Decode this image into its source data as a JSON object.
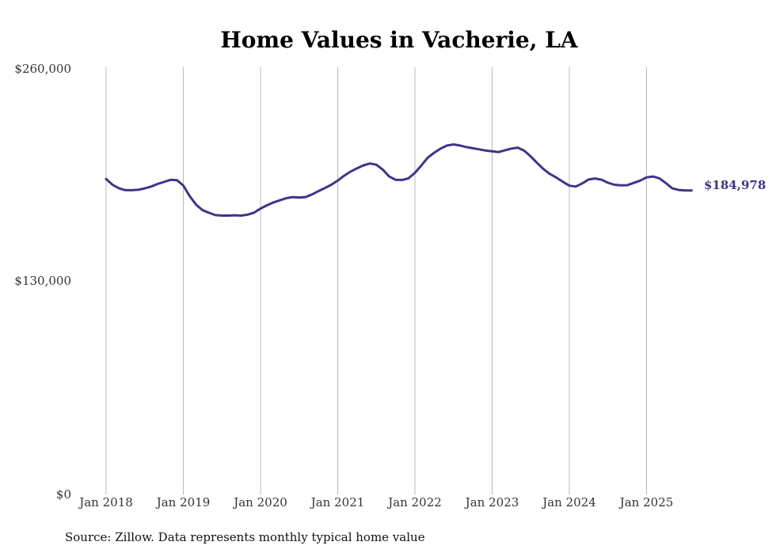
{
  "colors": {
    "series": "#3d3589",
    "gridline": "#b8b8b8",
    "text": "#333333"
  },
  "chart_data": {
    "type": "line",
    "title": "Home Values in Vacherie, LA",
    "xlabel": "",
    "ylabel": "",
    "grid": "vertical",
    "x_ticks": [
      "Jan 2018",
      "Jan 2019",
      "Jan 2020",
      "Jan 2021",
      "Jan 2022",
      "Jan 2023",
      "Jan 2024",
      "Jan 2025"
    ],
    "y_ticks": [
      "$0",
      "$130,000",
      "$260,000"
    ],
    "ylim": [
      0,
      260000
    ],
    "xlim": [
      "2018-01",
      "2025-08"
    ],
    "end_label": "$184,978",
    "series": [
      {
        "x": [
          "2018-01",
          "2018-02",
          "2018-03",
          "2018-04",
          "2018-05",
          "2018-06",
          "2018-07",
          "2018-08",
          "2018-09",
          "2018-10",
          "2018-11",
          "2018-12",
          "2019-01",
          "2019-02",
          "2019-03",
          "2019-04",
          "2019-05",
          "2019-06",
          "2019-07",
          "2019-08",
          "2019-09",
          "2019-10",
          "2019-11",
          "2019-12",
          "2020-01",
          "2020-02",
          "2020-03",
          "2020-04",
          "2020-05",
          "2020-06",
          "2020-07",
          "2020-08",
          "2020-09",
          "2020-10",
          "2020-11",
          "2020-12",
          "2021-01",
          "2021-02",
          "2021-03",
          "2021-04",
          "2021-05",
          "2021-06",
          "2021-07",
          "2021-08",
          "2021-09",
          "2021-10",
          "2021-11",
          "2021-12",
          "2022-01",
          "2022-02",
          "2022-03",
          "2022-04",
          "2022-05",
          "2022-06",
          "2022-07",
          "2022-08",
          "2022-09",
          "2022-10",
          "2022-11",
          "2022-12",
          "2023-01",
          "2023-02",
          "2023-03",
          "2023-04",
          "2023-05",
          "2023-06",
          "2023-07",
          "2023-08",
          "2023-09",
          "2023-10",
          "2023-11",
          "2023-12",
          "2024-01",
          "2024-02",
          "2024-03",
          "2024-04",
          "2024-05",
          "2024-06",
          "2024-07",
          "2024-08",
          "2024-09",
          "2024-10",
          "2024-11",
          "2024-12",
          "2025-01",
          "2025-02",
          "2025-03",
          "2025-04",
          "2025-05",
          "2025-06",
          "2025-07",
          "2025-08"
        ],
        "values": [
          192000,
          188500,
          186300,
          185200,
          185200,
          185400,
          186300,
          187400,
          189000,
          190200,
          191500,
          191300,
          188000,
          181500,
          176300,
          173000,
          171400,
          170000,
          169700,
          169700,
          169900,
          169700,
          170300,
          171500,
          174000,
          176000,
          177700,
          179000,
          180300,
          181000,
          180700,
          181000,
          182600,
          184600,
          186500,
          188500,
          191000,
          194000,
          196500,
          198500,
          200300,
          201400,
          200700,
          197700,
          193500,
          191500,
          191400,
          192400,
          195700,
          200200,
          205000,
          208000,
          210500,
          212400,
          213000,
          212400,
          211400,
          210700,
          210000,
          209300,
          208800,
          208400,
          209500,
          210500,
          211100,
          209200,
          205700,
          201700,
          198000,
          195000,
          192800,
          190300,
          187900,
          187400,
          189300,
          191700,
          192300,
          191600,
          189700,
          188500,
          188100,
          188200,
          189600,
          191000,
          193000,
          193500,
          192400,
          189500,
          186300,
          185300,
          185000,
          184978
        ]
      }
    ]
  },
  "source_note": "Source: Zillow. Data represents monthly typical home value"
}
